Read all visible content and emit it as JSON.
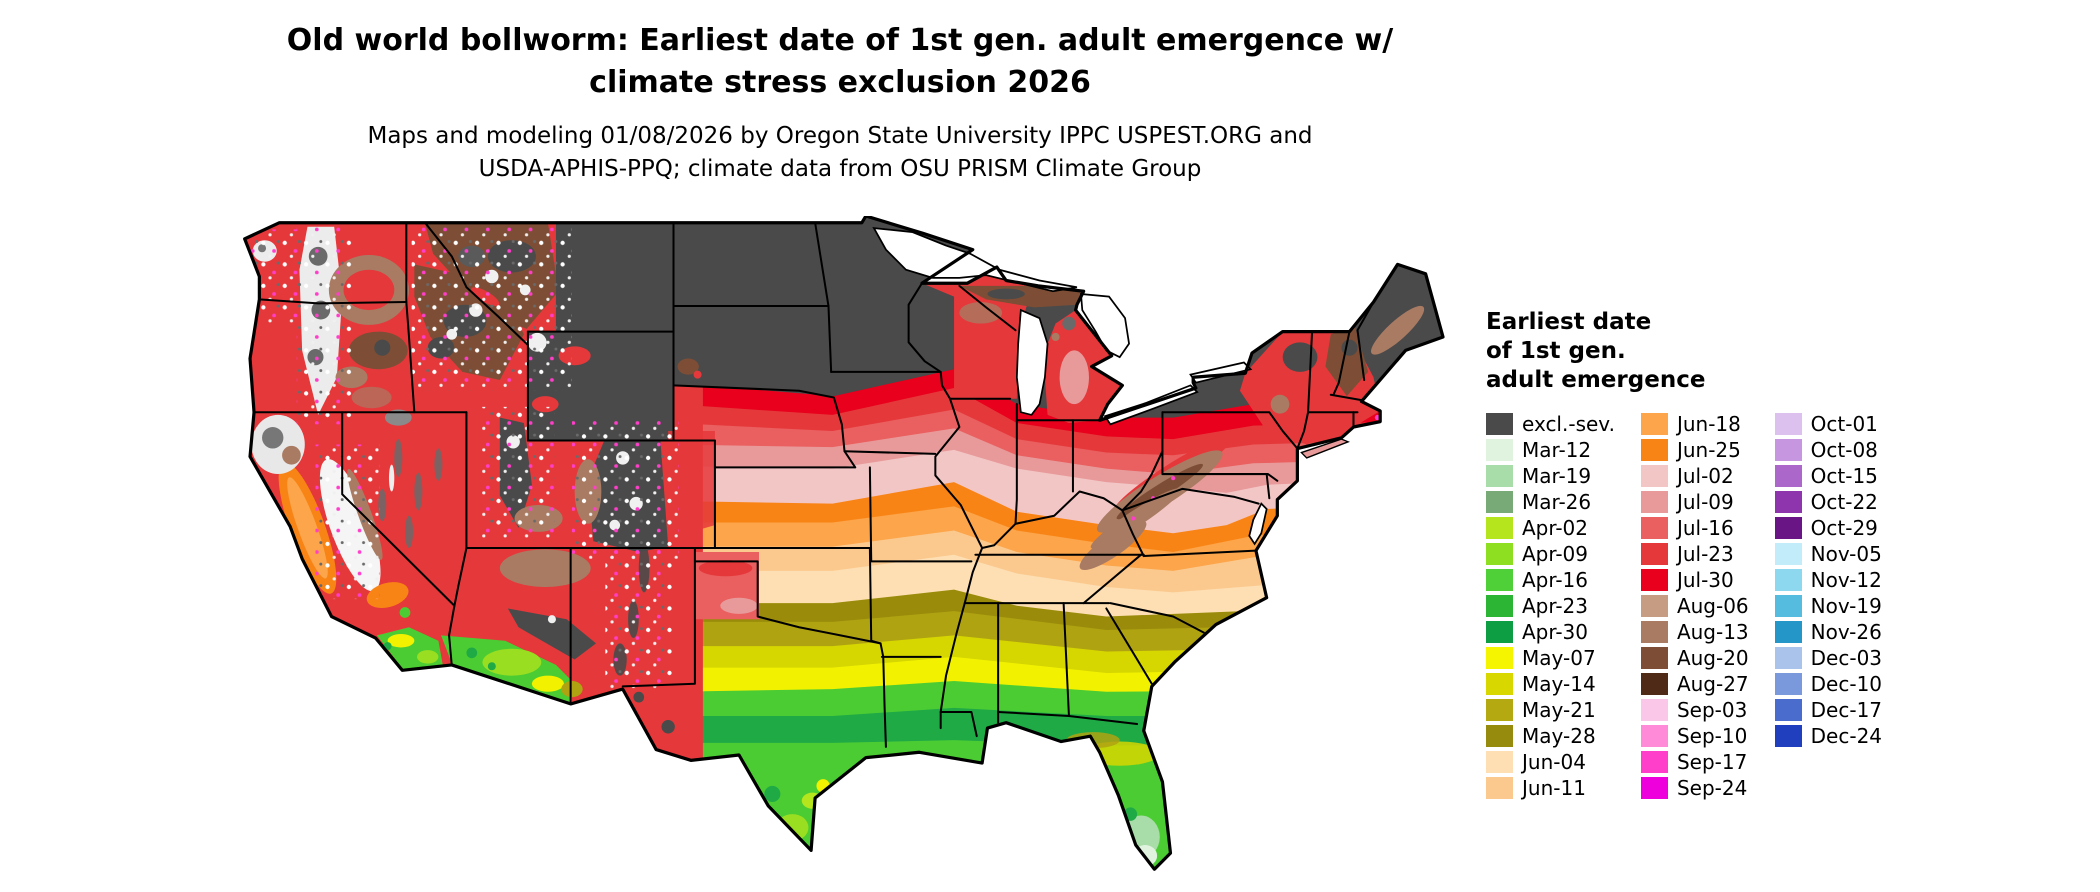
{
  "title": {
    "line1": "Old world bollworm: Earliest date of 1st gen. adult emergence w/",
    "line2": "climate stress exclusion 2026"
  },
  "subtitle": {
    "line1": "Maps and modeling 01/08/2026 by Oregon State University IPPC USPEST.ORG and",
    "line2": "USDA-APHIS-PPQ; climate data from OSU PRISM Climate Group"
  },
  "legend": {
    "title_line1": "Earliest date",
    "title_line2": "of 1st gen.",
    "title_line3": "adult emergence",
    "columns": [
      [
        {
          "label": "excl.-sev.",
          "color": "#4a4a4a"
        },
        {
          "label": "Mar-12",
          "color": "#dff3df"
        },
        {
          "label": "Mar-19",
          "color": "#a8dca8"
        },
        {
          "label": "Mar-26",
          "color": "#77aa77"
        },
        {
          "label": "Apr-02",
          "color": "#b5e61d"
        },
        {
          "label": "Apr-09",
          "color": "#8ede21"
        },
        {
          "label": "Apr-16",
          "color": "#4fd038"
        },
        {
          "label": "Apr-23",
          "color": "#2cb534"
        },
        {
          "label": "Apr-30",
          "color": "#0d9e44"
        },
        {
          "label": "May-07",
          "color": "#f5f500"
        },
        {
          "label": "May-14",
          "color": "#d8d800"
        },
        {
          "label": "May-21",
          "color": "#b5a912"
        },
        {
          "label": "May-28",
          "color": "#968b0c"
        },
        {
          "label": "Jun-04",
          "color": "#fddfb3"
        },
        {
          "label": "Jun-11",
          "color": "#fbc98e"
        }
      ],
      [
        {
          "label": "Jun-18",
          "color": "#fca54a"
        },
        {
          "label": "Jun-25",
          "color": "#f98416"
        },
        {
          "label": "Jul-02",
          "color": "#f3c6c6"
        },
        {
          "label": "Jul-09",
          "color": "#e89a9a"
        },
        {
          "label": "Jul-16",
          "color": "#ea5f5f"
        },
        {
          "label": "Jul-23",
          "color": "#e5383b"
        },
        {
          "label": "Jul-30",
          "color": "#e8001c"
        },
        {
          "label": "Aug-06",
          "color": "#c69c83"
        },
        {
          "label": "Aug-13",
          "color": "#a97b63"
        },
        {
          "label": "Aug-20",
          "color": "#7d4e35"
        },
        {
          "label": "Aug-27",
          "color": "#4f2a16"
        },
        {
          "label": "Sep-03",
          "color": "#fbc7e8"
        },
        {
          "label": "Sep-10",
          "color": "#ff8ad8"
        },
        {
          "label": "Sep-17",
          "color": "#ff3ec9"
        },
        {
          "label": "Sep-24",
          "color": "#ee00dd"
        }
      ],
      [
        {
          "label": "Oct-01",
          "color": "#dcc1ef"
        },
        {
          "label": "Oct-08",
          "color": "#c697e0"
        },
        {
          "label": "Oct-15",
          "color": "#ab67c9"
        },
        {
          "label": "Oct-22",
          "color": "#8e35ad"
        },
        {
          "label": "Oct-29",
          "color": "#6a1585"
        },
        {
          "label": "Nov-05",
          "color": "#c2ecf9"
        },
        {
          "label": "Nov-12",
          "color": "#8ed8ef"
        },
        {
          "label": "Nov-19",
          "color": "#55bbdf"
        },
        {
          "label": "Nov-26",
          "color": "#2596c8"
        },
        {
          "label": "Dec-03",
          "color": "#a9c3ea"
        },
        {
          "label": "Dec-10",
          "color": "#7a98dc"
        },
        {
          "label": "Dec-17",
          "color": "#4a6ccd"
        },
        {
          "label": "Dec-24",
          "color": "#1f3fbe"
        }
      ]
    ]
  }
}
